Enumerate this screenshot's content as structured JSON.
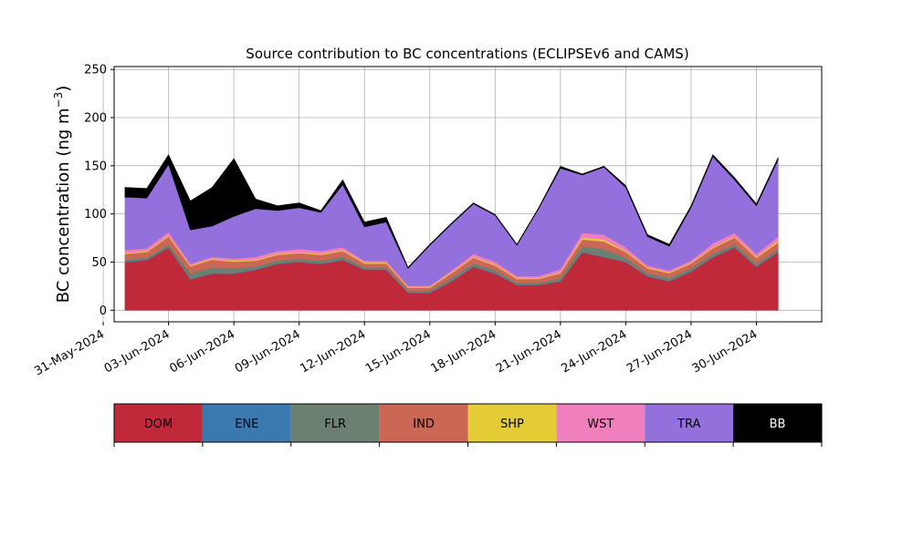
{
  "chart_data": {
    "type": "area",
    "title": "Source contribution to BC concentrations (ECLIPSEv6 and CAMS)",
    "ylabel": "BC concentration (ng m",
    "ylabel_unit_exponent": "−3",
    "ylabel_close": ")",
    "ylim": [
      -12,
      253
    ],
    "yticks": [
      0,
      50,
      100,
      150,
      200,
      250
    ],
    "xlim": [
      "2024-05-31T12:00",
      "2024-07-03T00:00"
    ],
    "xtick_labels": [
      "31-May-2024",
      "03-Jun-2024",
      "06-Jun-2024",
      "09-Jun-2024",
      "12-Jun-2024",
      "15-Jun-2024",
      "18-Jun-2024",
      "21-Jun-2024",
      "24-Jun-2024",
      "27-Jun-2024",
      "30-Jun-2024"
    ],
    "xtick_dates": [
      "2024-05-31",
      "2024-06-03",
      "2024-06-06",
      "2024-06-09",
      "2024-06-12",
      "2024-06-15",
      "2024-06-18",
      "2024-06-21",
      "2024-06-24",
      "2024-06-27",
      "2024-06-30"
    ],
    "grid": true,
    "legend_position": "below",
    "x": [
      "2024-06-01",
      "2024-06-02",
      "2024-06-03",
      "2024-06-04",
      "2024-06-05",
      "2024-06-06",
      "2024-06-07",
      "2024-06-08",
      "2024-06-09",
      "2024-06-10",
      "2024-06-11",
      "2024-06-12",
      "2024-06-13",
      "2024-06-14",
      "2024-06-15",
      "2024-06-16",
      "2024-06-17",
      "2024-06-18",
      "2024-06-19",
      "2024-06-20",
      "2024-06-21",
      "2024-06-22",
      "2024-06-23",
      "2024-06-24",
      "2024-06-25",
      "2024-06-26",
      "2024-06-27",
      "2024-06-28",
      "2024-06-29",
      "2024-06-30",
      "2024-07-01"
    ],
    "series": [
      {
        "name": "DOM",
        "color": "#c0293a",
        "values": [
          50,
          52,
          65,
          32,
          38,
          38,
          42,
          48,
          50,
          48,
          52,
          42,
          42,
          18,
          18,
          30,
          45,
          38,
          26,
          26,
          30,
          60,
          55,
          50,
          35,
          30,
          40,
          55,
          65,
          45,
          60
        ]
      },
      {
        "name": "ENE",
        "color": "#3a78b0",
        "values": [
          0.5,
          0.5,
          0.5,
          0.5,
          0.5,
          0.5,
          0.5,
          0.5,
          0.5,
          0.5,
          0.5,
          0.5,
          0.5,
          0.5,
          0.5,
          0.5,
          0.5,
          0.5,
          0.5,
          0.5,
          0.5,
          0.5,
          0.5,
          0.5,
          0.5,
          0.5,
          0.5,
          0.5,
          0.5,
          0.5,
          0.5
        ]
      },
      {
        "name": "FLR",
        "color": "#6b8070",
        "values": [
          2,
          2,
          3,
          6,
          6,
          5,
          3,
          3,
          3,
          3,
          3,
          2,
          2,
          2,
          2,
          3,
          3,
          3,
          2,
          2,
          3,
          6,
          8,
          4,
          3,
          3,
          3,
          3,
          3,
          3,
          3
        ]
      },
      {
        "name": "IND",
        "color": "#cc6655",
        "values": [
          6,
          6,
          8,
          7,
          8,
          7,
          6,
          6,
          6,
          6,
          6,
          4,
          4,
          3,
          3,
          5,
          6,
          5,
          4,
          4,
          5,
          7,
          8,
          6,
          5,
          5,
          5,
          6,
          7,
          6,
          7
        ]
      },
      {
        "name": "SHP",
        "color": "#e3cc35",
        "values": [
          1,
          1,
          1,
          1,
          1,
          1,
          1,
          1,
          1,
          1,
          1,
          1,
          1,
          1,
          1,
          1,
          1,
          1,
          1,
          1,
          1,
          2,
          2,
          1,
          1,
          1,
          1,
          1,
          1,
          1,
          2
        ]
      },
      {
        "name": "WST",
        "color": "#f07fbe",
        "values": [
          3,
          3,
          4,
          2,
          2,
          2,
          3,
          3,
          3,
          3,
          3,
          2,
          2,
          1,
          1,
          2,
          3,
          3,
          2,
          2,
          3,
          5,
          5,
          4,
          2,
          2,
          2,
          4,
          4,
          3,
          4
        ]
      },
      {
        "name": "TRA",
        "color": "#9370db",
        "values": [
          55,
          52,
          70,
          35,
          32,
          44,
          50,
          42,
          43,
          40,
          65,
          35,
          40,
          18,
          42,
          48,
          52,
          48,
          32,
          70,
          105,
          60,
          70,
          62,
          30,
          25,
          55,
          90,
          55,
          50,
          80
        ]
      },
      {
        "name": "BB",
        "color": "#000000",
        "values": [
          10,
          10,
          10,
          30,
          40,
          60,
          10,
          5,
          5,
          2,
          5,
          5,
          5,
          1,
          1,
          1,
          1,
          1,
          1,
          1,
          2,
          1,
          1,
          2,
          2,
          2,
          2,
          2,
          2,
          2,
          2
        ]
      }
    ]
  },
  "legend": {
    "items": [
      {
        "label": "DOM",
        "color": "#c0293a",
        "text_color": "#000000"
      },
      {
        "label": "ENE",
        "color": "#3a78b0",
        "text_color": "#000000"
      },
      {
        "label": "FLR",
        "color": "#6b8070",
        "text_color": "#000000"
      },
      {
        "label": "IND",
        "color": "#cc6655",
        "text_color": "#000000"
      },
      {
        "label": "SHP",
        "color": "#e3cc35",
        "text_color": "#000000"
      },
      {
        "label": "WST",
        "color": "#f07fbe",
        "text_color": "#000000"
      },
      {
        "label": "TRA",
        "color": "#9370db",
        "text_color": "#000000"
      },
      {
        "label": "BB",
        "color": "#000000",
        "text_color": "#ffffff"
      }
    ]
  }
}
